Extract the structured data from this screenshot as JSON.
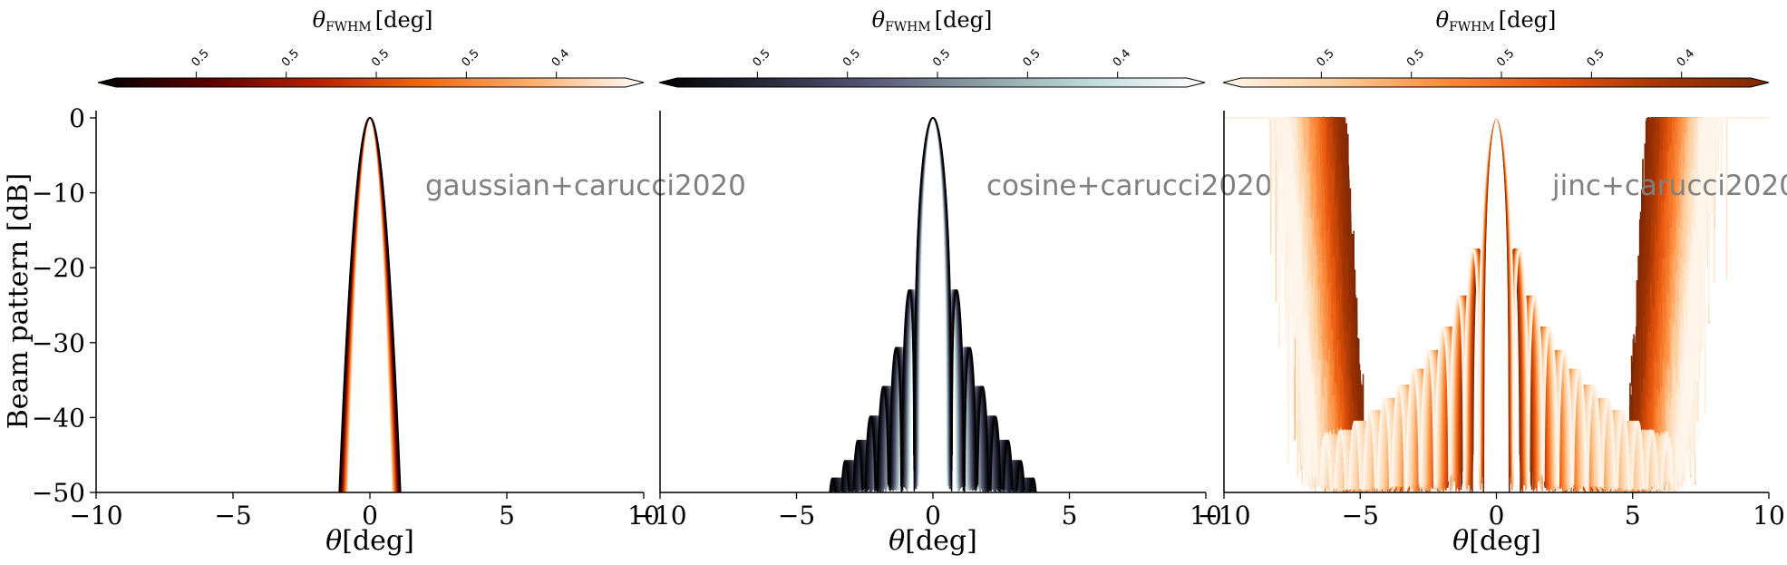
{
  "chart_data": [
    {
      "type": "line",
      "annotation": "gaussian+carucci2020",
      "colormap": "gist_heat",
      "colormap_stops": [
        "#000000",
        "#5a0000",
        "#b42000",
        "#f06a10",
        "#ffb070",
        "#ffffff"
      ],
      "colorbar_label_symbol": "θ",
      "colorbar_label_sub": "FWHM",
      "colorbar_label_unit": "[deg]",
      "colorbar_ticks": [
        "0.5",
        "0.5",
        "0.5",
        "0.5",
        "0.4"
      ],
      "xlabel_symbol": "θ",
      "xlabel_unit": "[deg]",
      "ylabel": "Beam pattern [dB]",
      "xlim": [
        -10,
        10
      ],
      "ylim": [
        -50,
        0
      ],
      "xticks": [
        "−10",
        "−5",
        "0",
        "5",
        "10"
      ],
      "yticks": [
        "0",
        "−10",
        "−20",
        "−30",
        "−40",
        "−50"
      ],
      "beam": "gaussian",
      "fwhm_range_deg": [
        0.4,
        0.55
      ],
      "n_curves": 30
    },
    {
      "type": "line",
      "annotation": "cosine+carucci2020",
      "colormap": "bone",
      "colormap_stops": [
        "#000000",
        "#2a2a3c",
        "#595b78",
        "#8fa3a6",
        "#c4dcdc",
        "#ffffff"
      ],
      "colorbar_label_symbol": "θ",
      "colorbar_label_sub": "FWHM",
      "colorbar_label_unit": "[deg]",
      "colorbar_ticks": [
        "0.5",
        "0.5",
        "0.5",
        "0.5",
        "0.4"
      ],
      "xlabel_symbol": "θ",
      "xlabel_unit": "[deg]",
      "ylabel": "",
      "xlim": [
        -10,
        10
      ],
      "ylim": [
        -50,
        0
      ],
      "xticks": [
        "−10",
        "−5",
        "0",
        "5",
        "10"
      ],
      "beam": "cosine",
      "fwhm_range_deg": [
        0.4,
        0.55
      ],
      "n_curves": 30
    },
    {
      "type": "line",
      "annotation": "jinc+carucci2020",
      "colormap": "Oranges",
      "colormap_stops": [
        "#fff5eb",
        "#fdd0a2",
        "#fd8d3c",
        "#e6550d",
        "#a63603",
        "#7f2704"
      ],
      "colorbar_label_symbol": "θ",
      "colorbar_label_sub": "FWHM",
      "colorbar_label_unit": "[deg]",
      "colorbar_ticks": [
        "0.5",
        "0.5",
        "0.5",
        "0.5",
        "0.4"
      ],
      "xlabel_symbol": "θ",
      "xlabel_unit": "[deg]",
      "ylabel": "",
      "xlim": [
        -10,
        10
      ],
      "ylim": [
        -50,
        0
      ],
      "xticks": [
        "−10",
        "−5",
        "0",
        "5",
        "10"
      ],
      "beam": "jinc",
      "fwhm_range_deg": [
        0.4,
        0.55
      ],
      "n_curves": 30
    }
  ]
}
